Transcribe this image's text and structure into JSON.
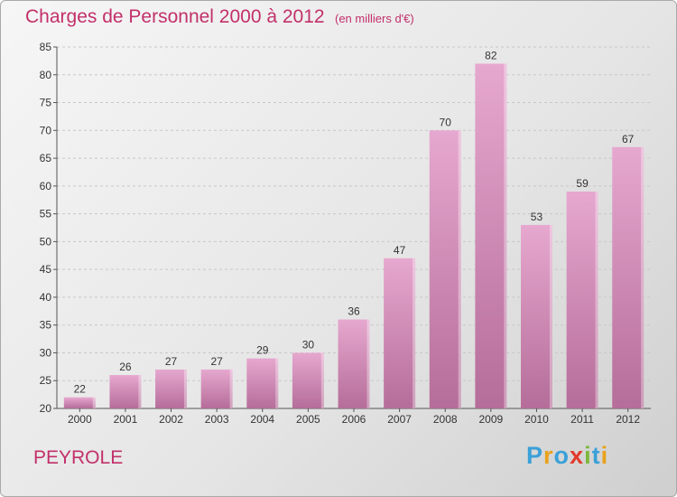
{
  "header": {
    "title": "Charges de Personnel 2000 à 2012",
    "subtitle": "(en milliers d'€)"
  },
  "footer": {
    "commune": "PEYROLE",
    "logo": {
      "letters": [
        "P",
        "r",
        "o",
        "x",
        "i",
        "t",
        "i"
      ],
      "colors": [
        "#3aa1d8",
        "#e8a21b",
        "#3aa1d8",
        "#e23a2d",
        "#7ab83c",
        "#3aa1d8",
        "#e8a21b"
      ]
    }
  },
  "chart_data": {
    "type": "bar",
    "categories": [
      "2000",
      "2001",
      "2002",
      "2003",
      "2004",
      "2005",
      "2006",
      "2007",
      "2008",
      "2009",
      "2010",
      "2011",
      "2012"
    ],
    "values": [
      22,
      26,
      27,
      27,
      29,
      30,
      36,
      47,
      70,
      82,
      53,
      59,
      67
    ],
    "ylim": [
      20,
      85
    ],
    "yticks": [
      20,
      25,
      30,
      35,
      40,
      45,
      50,
      55,
      60,
      65,
      70,
      75,
      80,
      85
    ],
    "grid": true,
    "bar_color": "#d98ab8"
  }
}
